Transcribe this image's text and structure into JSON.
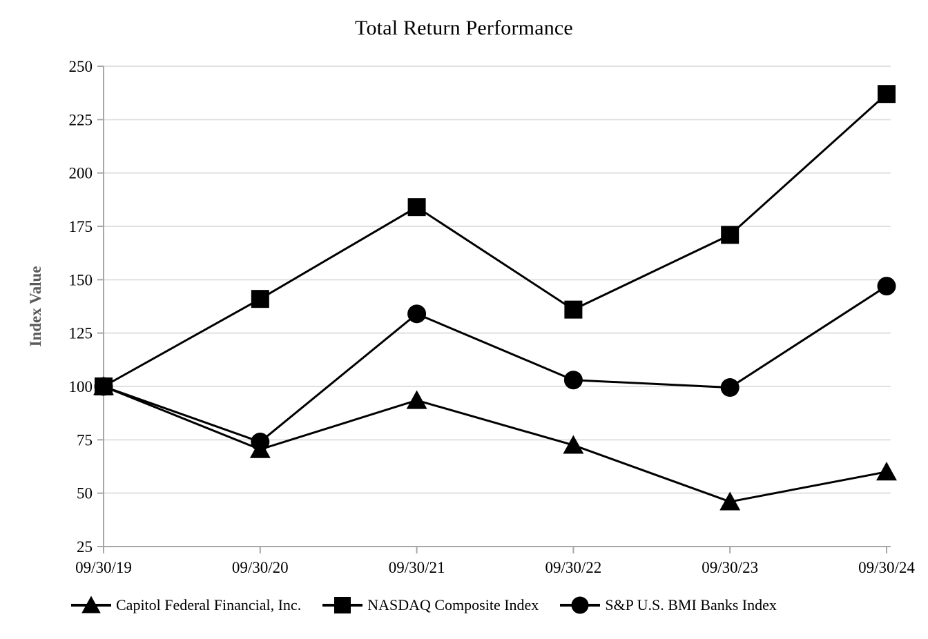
{
  "chart_data": {
    "type": "line",
    "title": "Total Return Performance",
    "ylabel": "Index Value",
    "xlabel": "",
    "x": [
      "09/30/19",
      "09/30/20",
      "09/30/21",
      "09/30/22",
      "09/30/23",
      "09/30/24"
    ],
    "series": [
      {
        "name": "Capitol Federal Financial, Inc.",
        "marker": "triangle",
        "values": [
          100,
          70.5,
          93.5,
          72.5,
          46,
          60
        ]
      },
      {
        "name": "NASDAQ Composite Index",
        "marker": "square",
        "values": [
          100,
          141,
          184,
          136,
          171,
          237
        ]
      },
      {
        "name": "S&P U.S. BMI Banks Index",
        "marker": "circle",
        "values": [
          100,
          74,
          134,
          103,
          99.5,
          147
        ]
      }
    ],
    "ylim": [
      25,
      250
    ],
    "ytick_step": 25,
    "grid": true,
    "legend_position": "bottom",
    "colors": {
      "series": "#000000",
      "gridline": "#e0e0e0",
      "axis": "#a6a6a6",
      "axis_title": "#595959",
      "text": "#000000"
    }
  }
}
